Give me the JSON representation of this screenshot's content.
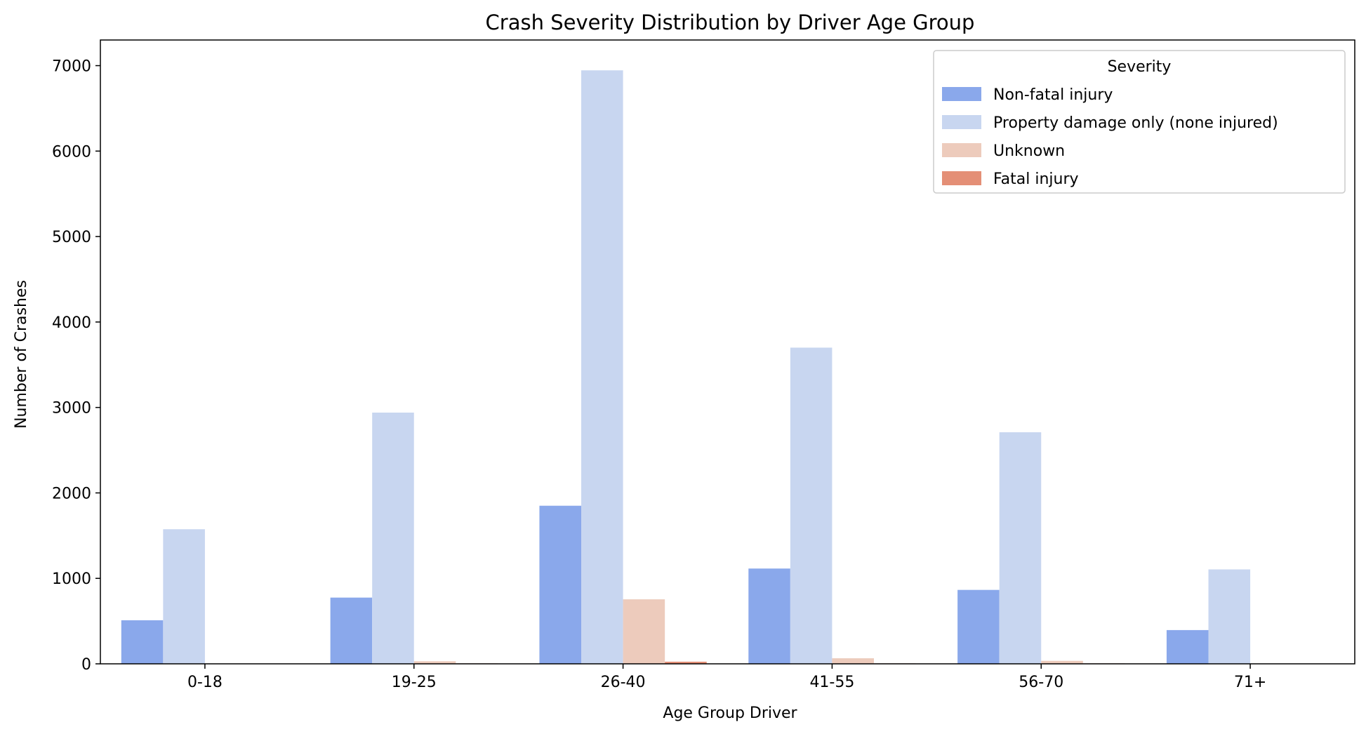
{
  "chart_data": {
    "type": "bar",
    "title": "Crash Severity Distribution by Driver Age Group",
    "xlabel": "Age Group  Driver",
    "ylabel": "Number of Crashes",
    "categories": [
      "0-18",
      "19-25",
      "26-40",
      "41-55",
      "56-70",
      "71+"
    ],
    "ylim": [
      0,
      7300
    ],
    "yticks": [
      0,
      1000,
      2000,
      3000,
      4000,
      5000,
      6000,
      7000
    ],
    "grid": false,
    "legend": {
      "title": "Severity",
      "placement": "top-right"
    },
    "series": [
      {
        "name": "Non-fatal injury",
        "color": "#8aa8eb",
        "values": [
          510,
          775,
          1850,
          1115,
          865,
          395
        ]
      },
      {
        "name": "Property damage only (none injured)",
        "color": "#c8d6f0",
        "values": [
          1575,
          2940,
          6945,
          3700,
          2710,
          1105
        ]
      },
      {
        "name": "Unknown",
        "color": "#edcbbc",
        "values": [
          0,
          30,
          755,
          65,
          35,
          0
        ]
      },
      {
        "name": "Fatal injury",
        "color": "#e48f76",
        "values": [
          0,
          5,
          25,
          5,
          5,
          0
        ]
      }
    ]
  }
}
